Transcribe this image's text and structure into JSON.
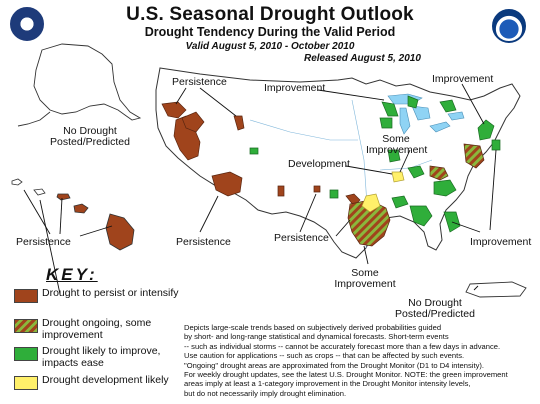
{
  "header": {
    "title": "U.S. Seasonal Drought Outlook",
    "subtitle": "Drought Tendency During the Valid Period",
    "valid": "Valid August 5, 2010 - October 2010",
    "released": "Released August 5, 2010"
  },
  "logos": {
    "left": "usda-seal-icon",
    "right": "noaa-logo-icon"
  },
  "map": {
    "labels": {
      "alaska": [
        "No Drought",
        "Posted/Predicted"
      ],
      "persistence_west": "Persistence",
      "improvement_north": "Improvement",
      "improvement_ne": "Improvement",
      "some_improvement_mid": [
        "Some",
        "Improvement"
      ],
      "development": "Development",
      "persistence_hawaii": "Persistence",
      "persistence_az": "Persistence",
      "persistence_tx": "Persistence",
      "improvement_se": "Improvement",
      "some_improvement_gulf": [
        "Some",
        "Improvement"
      ],
      "puerto_rico": [
        "No Drought",
        "Posted/Predicted"
      ]
    }
  },
  "key": {
    "title": "KEY:",
    "items": [
      {
        "label": "Drought to persist or intensify",
        "color": "#a0441c"
      },
      {
        "label": "Drought ongoing, some improvement",
        "color": "#a0441c",
        "hatch": "#6db33f"
      },
      {
        "label": "Drought likely to improve, impacts ease",
        "color": "#2fae3a"
      },
      {
        "label": "Drought development likely",
        "color": "#fff06a"
      }
    ]
  },
  "disclaimer": [
    "Depicts large-scale trends based on subjectively derived probabilities guided",
    "by short- and long-range statistical and dynamical forecasts. Short-term events",
    "-- such as individual storms -- cannot be accurately forecast more than a few days in advance.",
    "Use caution for applications -- such as crops -- that can be affected by such events.",
    "\"Ongoing\" drought areas are approximated from the Drought Monitor (D1 to D4 intensity).",
    "For weekly drought updates, see the latest U.S. Drought Monitor. NOTE: the green improvement",
    "areas imply at least a 1-category improvement in the Drought Monitor intensity levels,",
    "but do not necessarily imply drought elimination."
  ]
}
